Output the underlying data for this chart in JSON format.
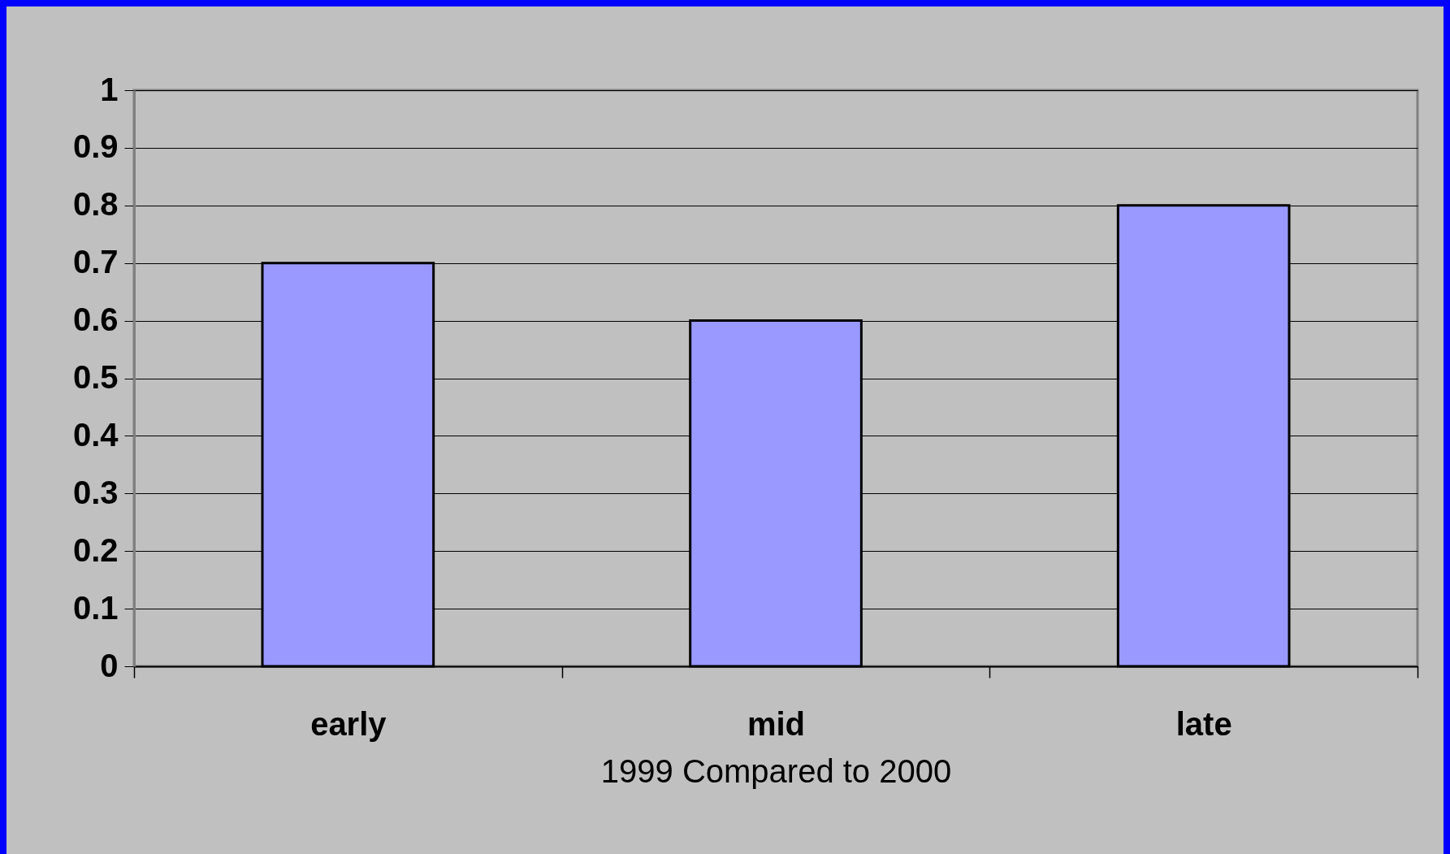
{
  "chart_data": {
    "type": "bar",
    "xlabel": "1999 Compared to 2000",
    "categories": [
      "early",
      "mid",
      "late"
    ],
    "values": [
      0.7,
      0.6,
      0.8
    ],
    "color": "#9999ff",
    "ylim": [
      0,
      1
    ],
    "yticks": [
      0,
      0.1,
      0.2,
      0.3,
      0.4,
      0.5,
      0.6,
      0.7,
      0.8,
      0.9,
      1
    ],
    "grid": "y"
  }
}
